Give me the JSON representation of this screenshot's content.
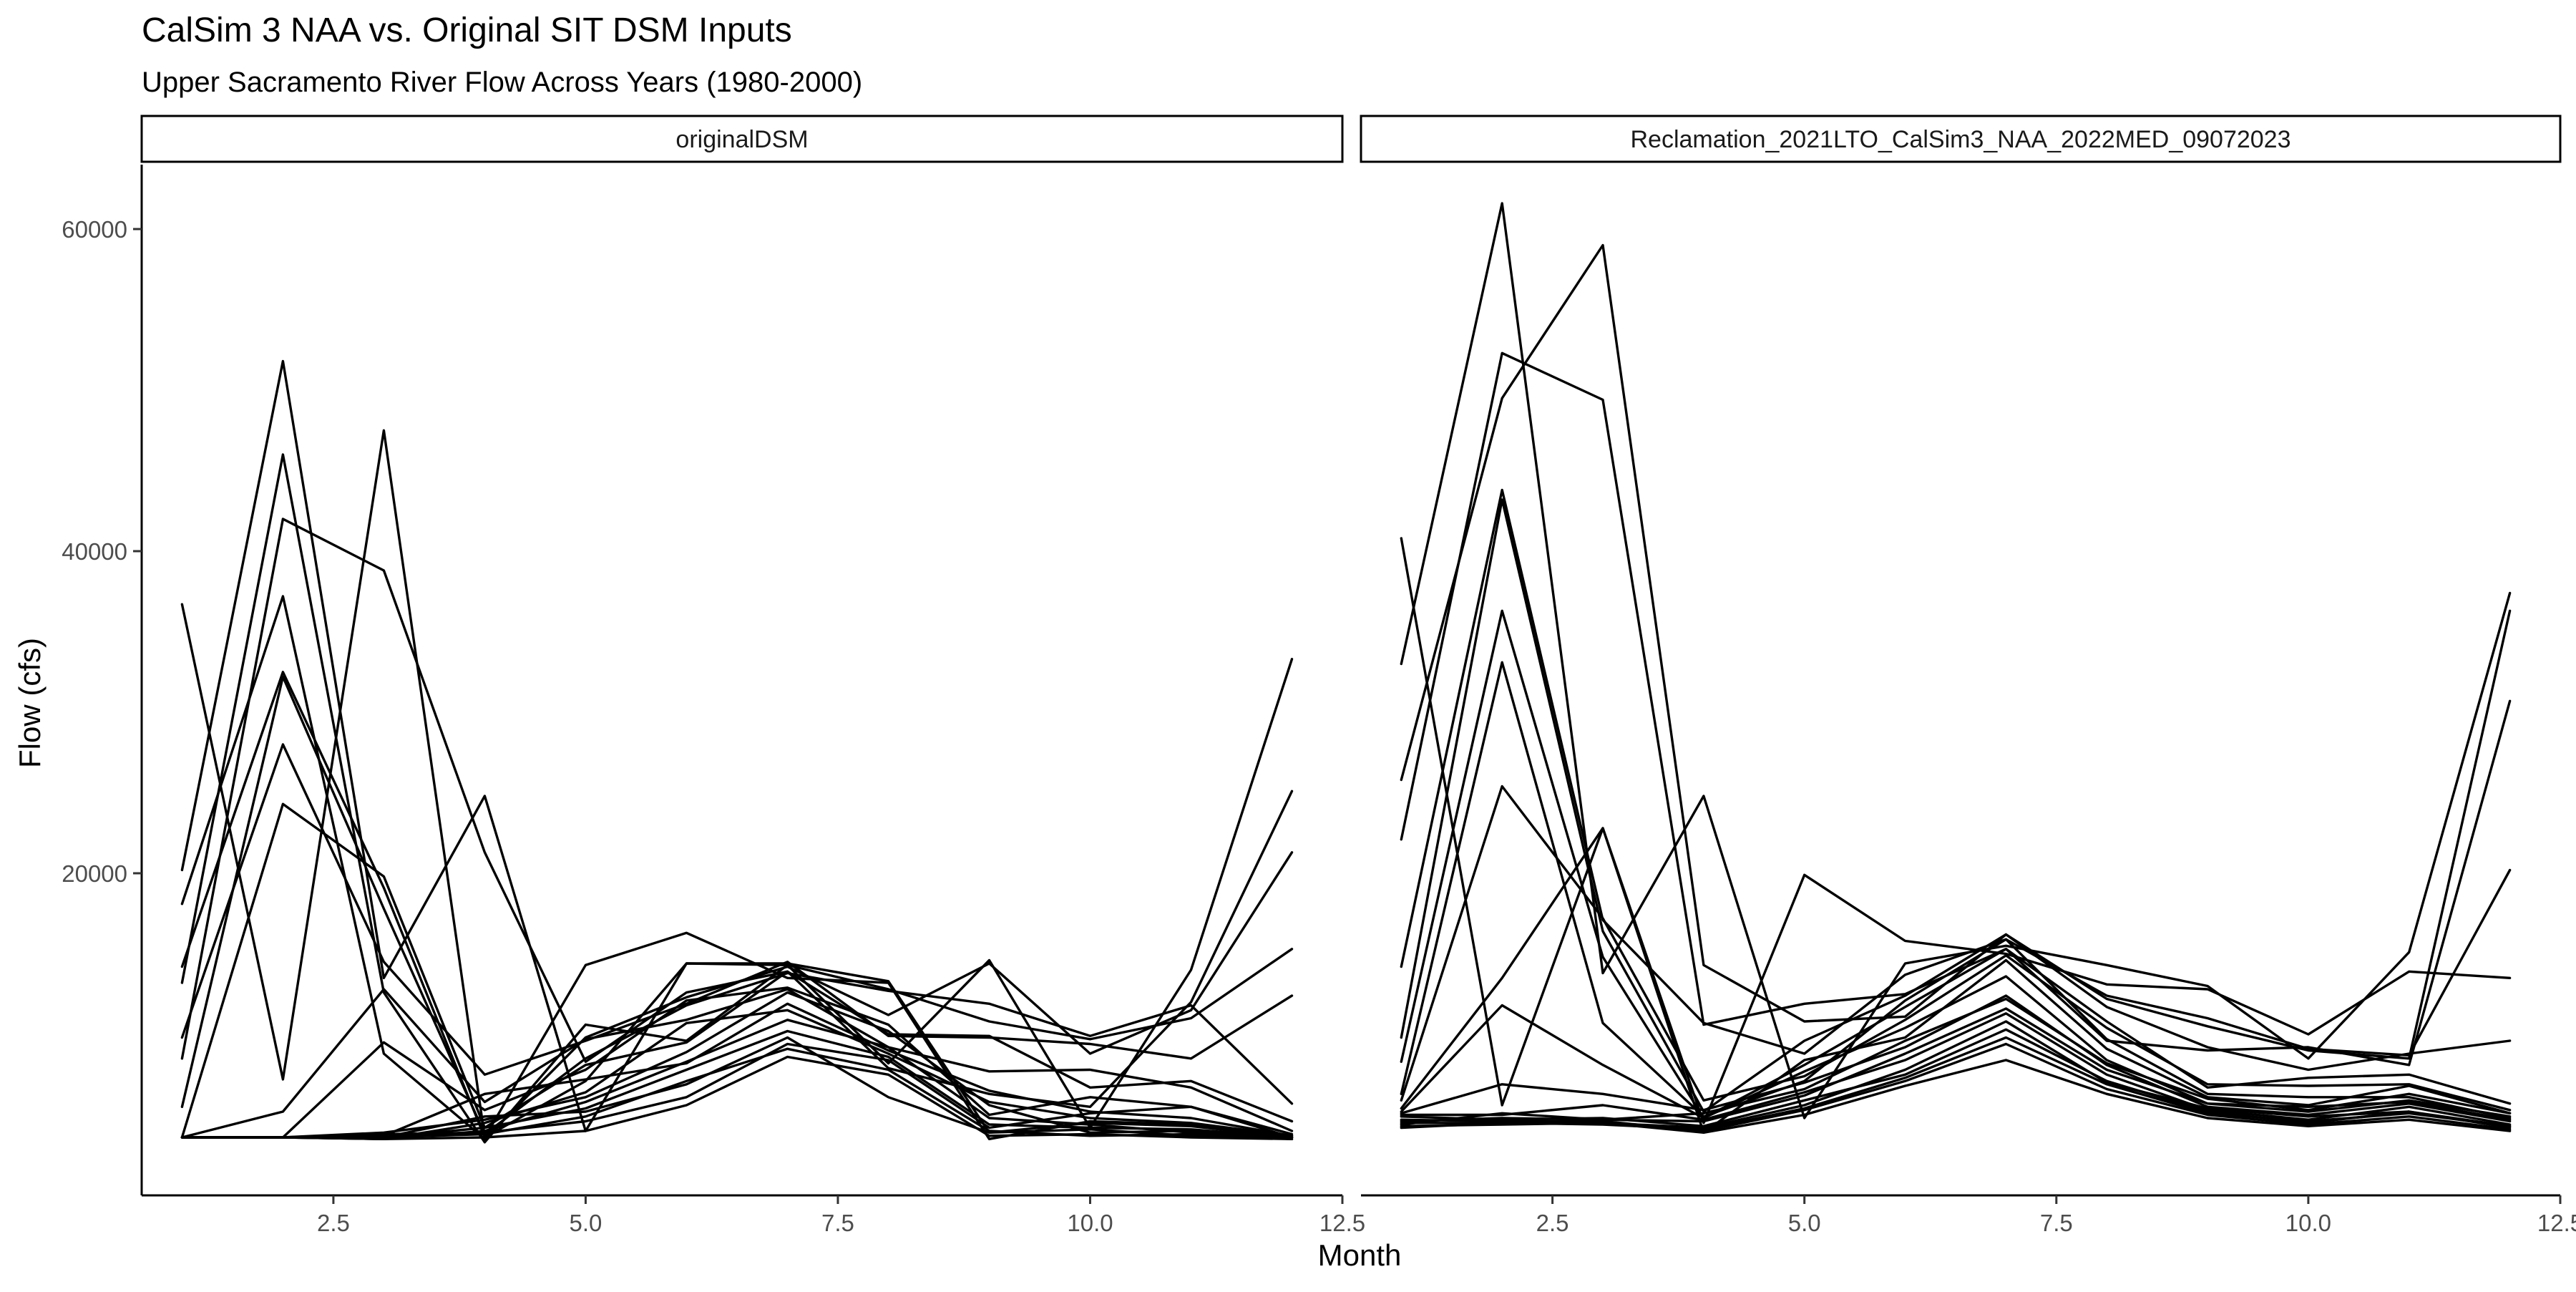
{
  "chart_data": {
    "type": "line",
    "title": "CalSim 3 NAA vs. Original SIT DSM Inputs",
    "subtitle": "Upper Sacramento River Flow Across Years (1980-2000)",
    "xlabel": "Month",
    "ylabel": "Flow (cfs)",
    "xlim": [
      0.6,
      12.5
    ],
    "ylim": [
      0,
      64000
    ],
    "x_ticks": [
      "2.5",
      "5.0",
      "7.5",
      "10.0",
      "12.5"
    ],
    "y_ticks": [
      "20000",
      "40000",
      "60000"
    ],
    "grid": false,
    "line_color": "#000000",
    "x": [
      1,
      2,
      3,
      4,
      5,
      6,
      7,
      8,
      9,
      10,
      11,
      12
    ],
    "panels": [
      {
        "strip_label": "originalDSM",
        "series": [
          {
            "values": [
              36700,
              7200,
              47500,
              3600,
              14300,
              16300,
              13500,
              13200,
              3500,
              4600,
              4400,
              3700
            ]
          },
          {
            "values": [
              20200,
              51800,
              13500,
              24800,
              4000,
              14400,
              14400,
              13300,
              3900,
              4500,
              4300,
              3600
            ]
          },
          {
            "values": [
              13200,
              46000,
              12600,
              3300,
              10600,
              9600,
              14300,
              8200,
              14600,
              4200,
              14000,
              33300
            ]
          },
          {
            "values": [
              8500,
              42000,
              38800,
              21300,
              8300,
              12600,
              13900,
              7900,
              6300,
              5500,
              12000,
              25100
            ]
          },
          {
            "values": [
              18100,
              37200,
              8800,
              3500,
              9800,
              12300,
              14200,
              11200,
              14400,
              8800,
              11500,
              21300
            ]
          },
          {
            "values": [
              14200,
              32500,
              19100,
              3600,
              7100,
              14400,
              14300,
              12800,
              10800,
              9700,
              11000,
              15300
            ]
          },
          {
            "values": [
              5500,
              32200,
              17800,
              3800,
              8500,
              11800,
              13800,
              12700,
              11900,
              9900,
              11800,
              5700
            ]
          },
          {
            "values": [
              9800,
              28000,
              14500,
              7500,
              9600,
              11900,
              14500,
              9900,
              9800,
              9400,
              8500,
              12400
            ]
          },
          {
            "values": [
              3600,
              24300,
              19800,
              4200,
              8100,
              9500,
              13900,
              10000,
              9900,
              6700,
              7100,
              4600
            ]
          },
          {
            "values": [
              3600,
              5200,
              12800,
              5800,
              9700,
              10900,
              12800,
              9200,
              7700,
              7800,
              6700,
              4000
            ]
          },
          {
            "values": [
              3600,
              3600,
              9500,
              5300,
              7800,
              12100,
              12900,
              10600,
              5000,
              6100,
              5500,
              3800
            ]
          },
          {
            "values": [
              3600,
              3600,
              3700,
              6300,
              7200,
              8200,
              11900,
              9000,
              6500,
              5200,
              4800,
              3700
            ]
          },
          {
            "values": [
              3600,
              3600,
              3500,
              4500,
              6400,
              10700,
              11500,
              8800,
              5800,
              4800,
              4500,
              3700
            ]
          },
          {
            "values": [
              3600,
              3600,
              3500,
              4000,
              5800,
              8300,
              10900,
              9200,
              4800,
              4400,
              3900,
              3600
            ]
          },
          {
            "values": [
              3600,
              3600,
              3600,
              4900,
              5200,
              6900,
              9800,
              6100,
              3900,
              4100,
              3700,
              3600
            ]
          },
          {
            "values": [
              3600,
              3600,
              3500,
              3600,
              4000,
              5600,
              8600,
              7500,
              3700,
              3800,
              3600,
              3500
            ]
          },
          {
            "values": [
              3600,
              3600,
              3800,
              3900,
              4600,
              6100,
              9400,
              8400,
              4200,
              5100,
              5500,
              3600
            ]
          },
          {
            "values": [
              3600,
              3600,
              3900,
              4700,
              6100,
              8900,
              12600,
              10200,
              5600,
              3900,
              4000,
              3600
            ]
          },
          {
            "values": [
              3600,
              3600,
              3600,
              4200,
              5400,
              7800,
              10200,
              8600,
              4400,
              4200,
              4100,
              3600
            ]
          },
          {
            "values": [
              3600,
              3600,
              3600,
              3800,
              4900,
              7100,
              9100,
              7800,
              4000,
              3700,
              3800,
              3500
            ]
          }
        ]
      },
      {
        "strip_label": "Reclamation_2021LTO_CalSim3_NAA_2022MED_09072023",
        "series": [
          {
            "values": [
              40800,
              5600,
              22800,
              4500,
              19900,
              15800,
              15000,
              13100,
              12800,
              10000,
              13900,
              13500
            ]
          },
          {
            "values": [
              33000,
              61600,
              13800,
              24800,
              4800,
              14400,
              15500,
              14300,
              13000,
              8500,
              15100,
              37400
            ]
          },
          {
            "values": [
              25800,
              49500,
              59000,
              14300,
              10800,
              11100,
              16200,
              12200,
              10500,
              9000,
              8500,
              36300
            ]
          },
          {
            "values": [
              22100,
              52300,
              49400,
              10600,
              11900,
              12500,
              15300,
              9600,
              9000,
              9200,
              8100,
              30700
            ]
          },
          {
            "values": [
              14200,
              43800,
              17100,
              10700,
              8800,
              13700,
              15900,
              12400,
              11000,
              9100,
              8700,
              20200
            ]
          },
          {
            "values": [
              9800,
              43200,
              16400,
              5200,
              9600,
              12400,
              16200,
              11700,
              9200,
              7800,
              8800,
              9600
            ]
          },
          {
            "values": [
              8300,
              36300,
              14800,
              4800,
              8100,
              11700,
              15300,
              10800,
              6700,
              7300,
              7500,
              5700
            ]
          },
          {
            "values": [
              6300,
              33100,
              10700,
              4900,
              7100,
              12100,
              15900,
              9700,
              6300,
              6100,
              6100,
              4800
            ]
          },
          {
            "values": [
              5900,
              25400,
              17200,
              5900,
              7400,
              10900,
              14900,
              10400,
              6900,
              6800,
              6900,
              5300
            ]
          },
          {
            "values": [
              5400,
              13500,
              22800,
              3900,
              8400,
              9800,
              14600,
              9100,
              6100,
              5600,
              6800,
              5100
            ]
          },
          {
            "values": [
              5200,
              11800,
              8100,
              4800,
              7700,
              10400,
              13600,
              8400,
              5700,
              5500,
              5800,
              4700
            ]
          },
          {
            "values": [
              5100,
              6900,
              6300,
              5300,
              7000,
              9200,
              12400,
              8100,
              5500,
              5000,
              5700,
              4600
            ]
          },
          {
            "values": [
              5000,
              5000,
              5600,
              4700,
              6400,
              8400,
              11300,
              7500,
              5300,
              4700,
              5500,
              4400
            ]
          },
          {
            "values": [
              4900,
              4700,
              4800,
              4300,
              5900,
              7500,
              10300,
              7100,
              5200,
              4500,
              5200,
              4200
            ]
          },
          {
            "values": [
              4700,
              4600,
              4600,
              4000,
              5300,
              7100,
              9400,
              6600,
              5000,
              4400,
              4900,
              4100
            ]
          },
          {
            "values": [
              4500,
              4500,
              4500,
              3900,
              5000,
              6800,
              8400,
              6300,
              4800,
              4300,
              4700,
              4000
            ]
          },
          {
            "values": [
              4300,
              4400,
              4500,
              4200,
              5600,
              7800,
              10800,
              7000,
              5400,
              4900,
              5200,
              4300
            ]
          },
          {
            "values": [
              4600,
              4800,
              4700,
              5100,
              6600,
              9600,
              12200,
              8200,
              6000,
              5300,
              6300,
              5100
            ]
          },
          {
            "values": [
              4400,
              5100,
              4700,
              4600,
              6200,
              8800,
              11600,
              7800,
              5700,
              5200,
              5900,
              4900
            ]
          },
          {
            "values": [
              4200,
              4500,
              4400,
              4100,
              5400,
              7300,
              9800,
              6900,
              5100,
              4600,
              5100,
              4300
            ]
          }
        ]
      }
    ]
  }
}
